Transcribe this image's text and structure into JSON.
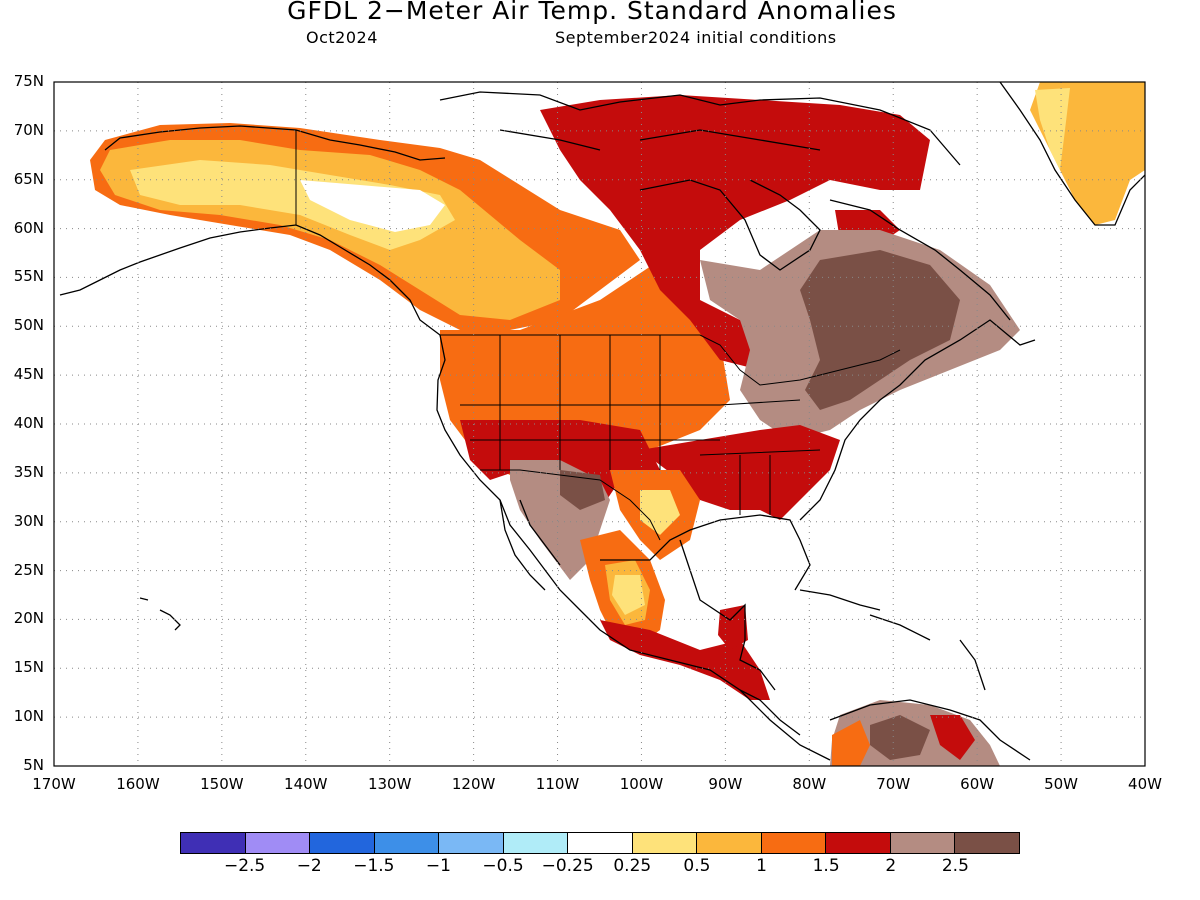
{
  "title": "GFDL 2−Meter Air Temp. Standard Anomalies",
  "subtitle_left": "Oct2024",
  "subtitle_right": "September2024 initial conditions",
  "lat_labels": [
    "75N",
    "70N",
    "65N",
    "60N",
    "55N",
    "50N",
    "45N",
    "40N",
    "35N",
    "30N",
    "25N",
    "20N",
    "15N",
    "10N",
    "5N"
  ],
  "lon_labels": [
    "170W",
    "160W",
    "150W",
    "140W",
    "130W",
    "120W",
    "110W",
    "100W",
    "90W",
    "80W",
    "70W",
    "60W",
    "50W",
    "40W"
  ],
  "legend": {
    "colors": [
      "#3f2fb5",
      "#a08cf5",
      "#2266dd",
      "#3d8fe8",
      "#7ab8f5",
      "#b0ecf8",
      "#ffffff",
      "#fee27a",
      "#fbb73c",
      "#f76c12",
      "#c40c0c",
      "#b48c82",
      "#7a5046"
    ],
    "labels": [
      "−2.5",
      "−2",
      "−1.5",
      "−1",
      "−0.5",
      "−0.25",
      "0.25",
      "0.5",
      "1",
      "1.5",
      "2",
      "2.5"
    ]
  },
  "colors": {
    "yellow": "#fee27a",
    "light_orange": "#fbb73c",
    "orange": "#f76c12",
    "red": "#c40c0c",
    "tan": "#b48c82",
    "brown": "#7a5046"
  }
}
